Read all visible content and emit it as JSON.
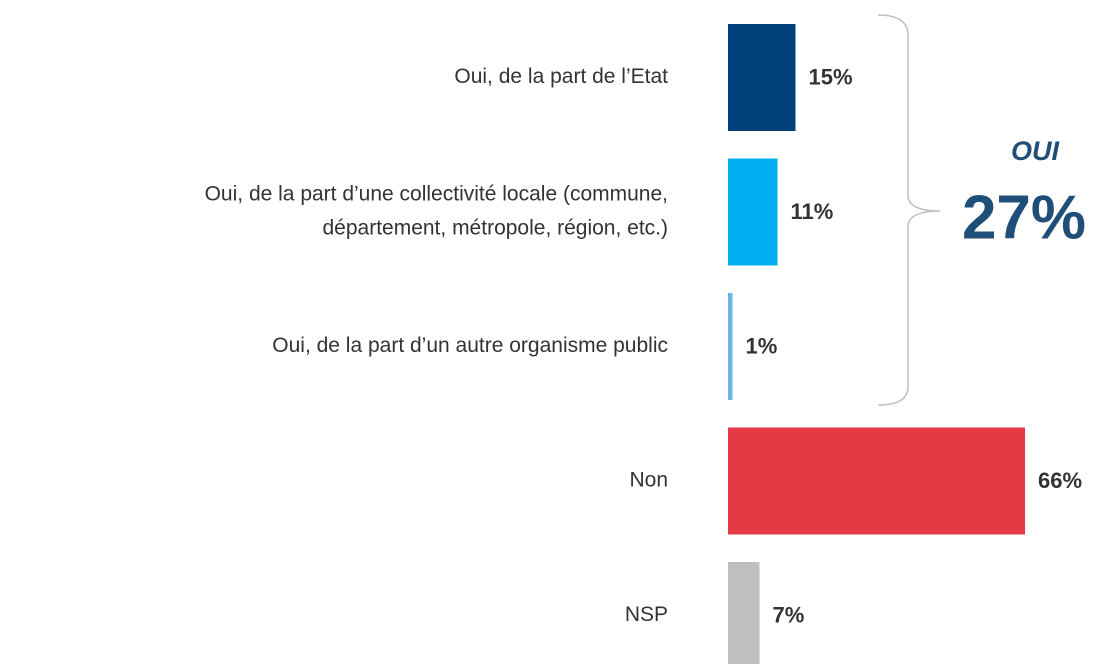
{
  "chart_data": {
    "type": "bar",
    "orientation": "horizontal",
    "categories": [
      "Oui, de la part de l’Etat",
      [
        "Oui, de la part d’une collectivité locale (commune,",
        "département, métropole, région, etc.)"
      ],
      "Oui, de la part d’un autre organisme public",
      "Non",
      "NSP"
    ],
    "values": [
      15,
      11,
      1,
      66,
      7
    ],
    "value_labels": [
      "15%",
      "11%",
      "1%",
      "66%",
      "7%"
    ],
    "colors": [
      "#003f7a",
      "#00b0f0",
      "#6cb4e6",
      "#e63946",
      "#bfbfbf"
    ],
    "annotation": {
      "text": "OUI",
      "value": 27,
      "value_label": "27%",
      "color": "#1f4e79"
    }
  }
}
